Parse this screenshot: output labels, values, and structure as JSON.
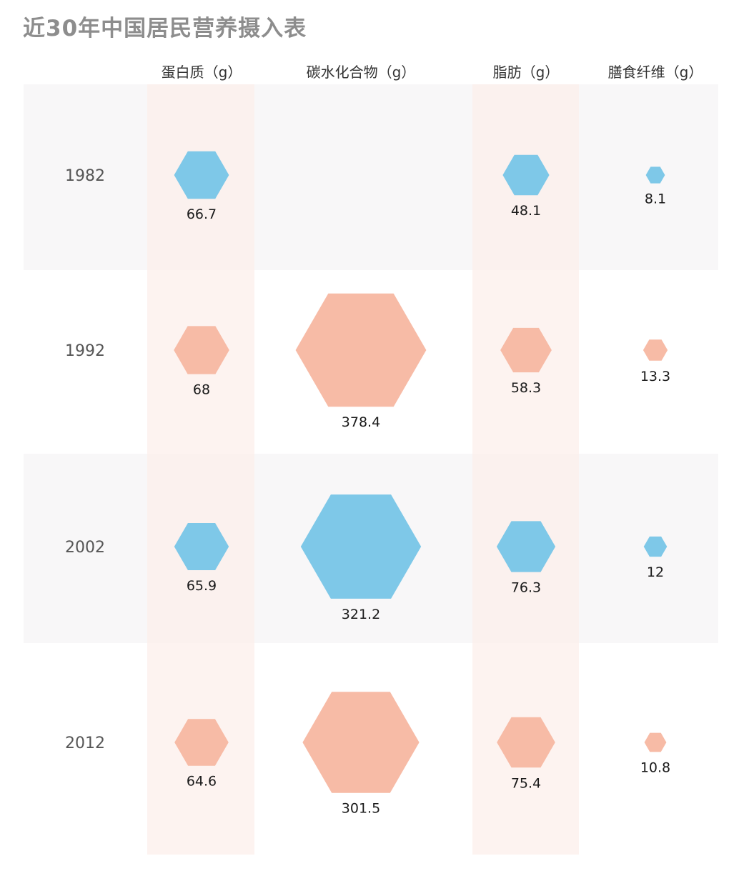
{
  "title": "近30年中国居民营养摄入表",
  "colors": {
    "blue": "#7ec8e8",
    "salmon": "#f7bba6",
    "band_gray": "#f8f7f8",
    "column_highlight": "#fcefeb"
  },
  "chart_data": {
    "type": "hexagon-bubble-table",
    "title": "近30年中国居民营养摄入表",
    "columns": [
      "蛋白质（g）",
      "碳水化合物（g）",
      "脂肪（g）",
      "膳食纤维（g）"
    ],
    "rows": [
      "1982",
      "1992",
      "2002",
      "2012"
    ],
    "values": [
      [
        66.7,
        null,
        48.1,
        8.1
      ],
      [
        68,
        378.4,
        58.3,
        13.3
      ],
      [
        65.9,
        321.2,
        76.3,
        12
      ],
      [
        64.6,
        301.5,
        75.4,
        10.8
      ]
    ],
    "row_colors": [
      "blue",
      "salmon",
      "blue",
      "salmon"
    ],
    "highlighted_columns": [
      "蛋白质（g）",
      "脂肪（g）"
    ],
    "alternate_row_bands": [
      "1982",
      "2002"
    ]
  }
}
